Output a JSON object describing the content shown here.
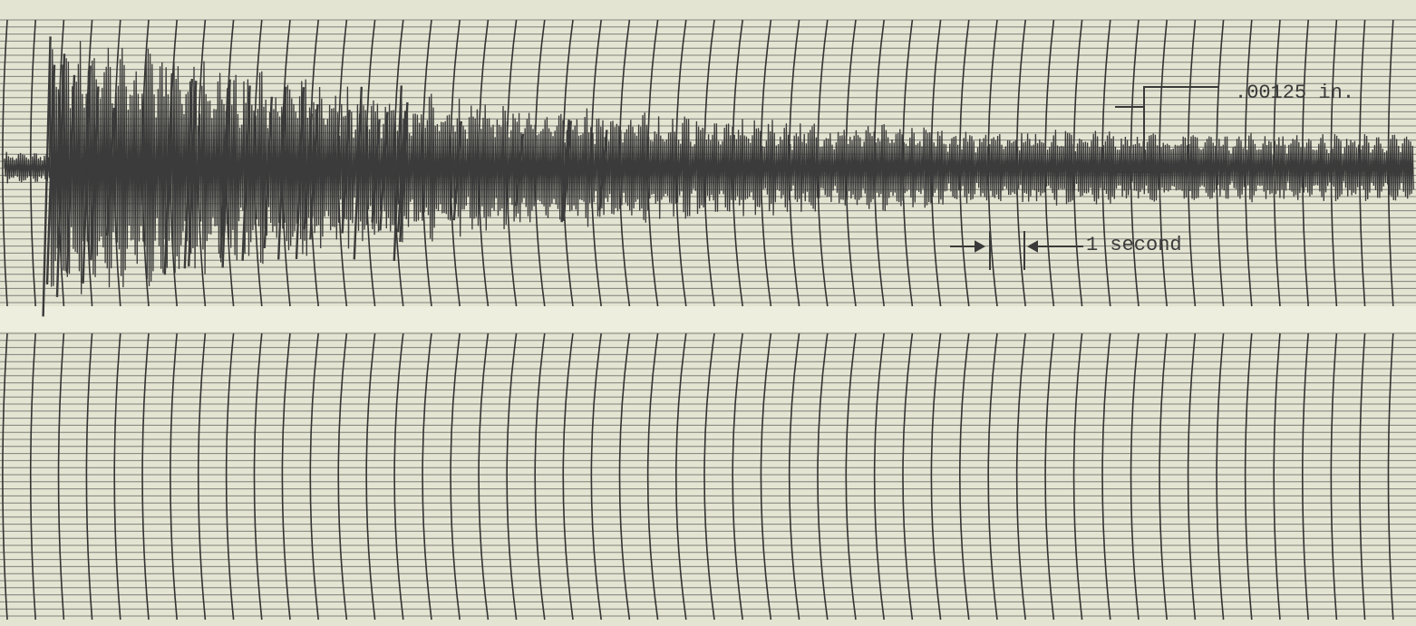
{
  "annotations": {
    "amplitude_scale": ".00125 in.",
    "time_scale": "1 second"
  }
}
